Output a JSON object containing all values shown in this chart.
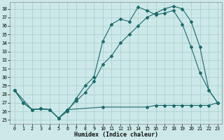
{
  "xlabel": "Humidex (Indice chaleur)",
  "bg_color": "#cce8e8",
  "grid_color": "#aacccc",
  "line_color": "#1a6b6b",
  "xlim": [
    -0.5,
    23.5
  ],
  "ylim": [
    24.5,
    38.8
  ],
  "yticks": [
    25,
    26,
    27,
    28,
    29,
    30,
    31,
    32,
    33,
    34,
    35,
    36,
    37,
    38
  ],
  "xticks": [
    0,
    1,
    2,
    3,
    4,
    5,
    6,
    7,
    8,
    9,
    10,
    11,
    12,
    13,
    14,
    15,
    16,
    17,
    18,
    19,
    20,
    21,
    22,
    23
  ],
  "line1_x": [
    0,
    1,
    2,
    3,
    4,
    5,
    6,
    7,
    8,
    9,
    10,
    11,
    12,
    13,
    14,
    15,
    16,
    17,
    18,
    19,
    20,
    21,
    22,
    23
  ],
  "line1_y": [
    28.5,
    27.0,
    26.2,
    26.3,
    26.2,
    25.2,
    26.0,
    27.5,
    29.0,
    30.0,
    34.2,
    36.2,
    36.8,
    36.5,
    38.2,
    37.8,
    37.3,
    37.5,
    37.8,
    36.2,
    33.5,
    30.5,
    28.5,
    27.0
  ],
  "line2_x": [
    0,
    2,
    3,
    4,
    5,
    6,
    7,
    8,
    9,
    10,
    11,
    12,
    13,
    14,
    15,
    16,
    17,
    18,
    19,
    20,
    21,
    22,
    23
  ],
  "line2_y": [
    28.5,
    26.2,
    26.3,
    26.2,
    25.2,
    26.2,
    27.2,
    28.2,
    29.5,
    31.5,
    32.5,
    34.0,
    35.0,
    36.0,
    37.0,
    37.5,
    38.0,
    38.3,
    38.0,
    36.5,
    33.5,
    28.5,
    27.0
  ],
  "line3_x": [
    0,
    1,
    2,
    3,
    4,
    5,
    6,
    10,
    15,
    16,
    17,
    18,
    19,
    20,
    21,
    22,
    23
  ],
  "line3_y": [
    28.5,
    27.0,
    26.2,
    26.3,
    26.2,
    25.2,
    26.2,
    26.5,
    26.5,
    26.7,
    26.7,
    26.7,
    26.7,
    26.7,
    26.7,
    26.7,
    27.0
  ]
}
